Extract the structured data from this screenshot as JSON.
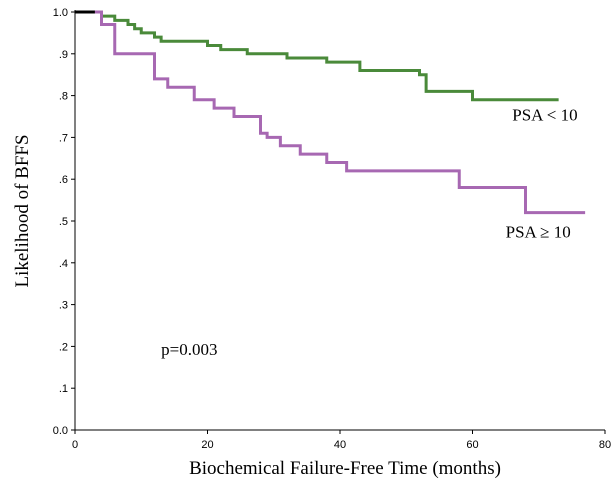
{
  "chart_data": {
    "type": "line",
    "title": "",
    "xlabel": "Biochemical Failure-Free Time (months)",
    "ylabel": "Likelihood of BFFS",
    "xlim": [
      0,
      80
    ],
    "ylim": [
      0,
      1
    ],
    "x_ticks": [
      0,
      20,
      40,
      60,
      80
    ],
    "x_tick_labels": [
      "0",
      "20",
      "40",
      "60",
      "80"
    ],
    "y_ticks": [
      0,
      0.1,
      0.2,
      0.3,
      0.4,
      0.5,
      0.6,
      0.7,
      0.8,
      0.9,
      1.0
    ],
    "y_tick_labels": [
      "0.0",
      ".1",
      ".2",
      ".3",
      ".4",
      ".5",
      ".6",
      ".7",
      ".8",
      ".9",
      "1.0"
    ],
    "grid": false,
    "series": [
      {
        "name": "PSA < 10",
        "color": "#4a8a3a",
        "x": [
          0,
          3,
          4,
          6,
          7,
          8,
          9,
          10,
          12,
          13,
          20,
          22,
          26,
          32,
          38,
          43,
          52,
          53,
          59,
          60,
          73
        ],
        "y": [
          1.0,
          1.0,
          0.99,
          0.98,
          0.98,
          0.97,
          0.96,
          0.95,
          0.94,
          0.93,
          0.92,
          0.91,
          0.9,
          0.89,
          0.88,
          0.86,
          0.85,
          0.81,
          0.81,
          0.79,
          0.79
        ]
      },
      {
        "name": "PSA ≥ 10",
        "color": "#a768b2",
        "x": [
          0,
          3,
          4,
          6,
          12,
          14,
          18,
          21,
          24,
          28,
          29,
          31,
          34,
          38,
          41,
          58,
          68,
          77
        ],
        "y": [
          1.0,
          1.0,
          0.97,
          0.9,
          0.84,
          0.82,
          0.79,
          0.77,
          0.75,
          0.71,
          0.7,
          0.68,
          0.66,
          0.64,
          0.62,
          0.58,
          0.52,
          0.52
        ]
      }
    ],
    "annotations": [
      {
        "text": "PSA < 10",
        "x": 66,
        "y": 0.74
      },
      {
        "text": "PSA ≥ 10",
        "x": 65,
        "y": 0.46
      },
      {
        "text": "p=0.003",
        "x": 13,
        "y": 0.18
      }
    ]
  }
}
